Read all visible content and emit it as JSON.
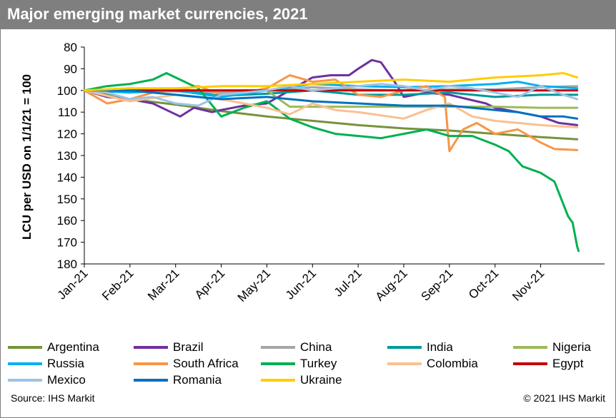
{
  "title": "Major emerging market currencies, 2021",
  "source": "Source: IHS Markit",
  "copyright": "© 2021 IHS Markit",
  "chart_data": {
    "type": "line",
    "title": "Major emerging market currencies, 2021",
    "ylabel": "LCU per USD on 1/1/21 = 100",
    "xlabel": "",
    "y_inverted": true,
    "ylim": [
      80,
      180
    ],
    "yticks": [
      80,
      90,
      100,
      110,
      120,
      130,
      140,
      150,
      160,
      170,
      180
    ],
    "xlim": [
      0,
      11.4
    ],
    "categories": [
      "Jan-21",
      "Feb-21",
      "Mar-21",
      "Apr-21",
      "May-21",
      "Jun-21",
      "Jul-21",
      "Aug-21",
      "Sep-21",
      "Oct-21",
      "Nov-21"
    ],
    "grid": false,
    "legend_position": "bottom",
    "series": [
      {
        "name": "Argentina",
        "color": "#76933c",
        "x": [
          0,
          1,
          2,
          3,
          4,
          5,
          6,
          7,
          8,
          9,
          10,
          10.8
        ],
        "values": [
          100,
          104,
          106.5,
          109.5,
          112,
          114,
          116,
          117.5,
          118.5,
          120,
          121.5,
          122.5
        ]
      },
      {
        "name": "Brazil",
        "color": "#7030a0",
        "x": [
          0,
          0.5,
          1,
          1.5,
          1.9,
          2.1,
          2.4,
          2.8,
          3,
          3.5,
          4,
          4.5,
          5,
          5.4,
          5.8,
          6,
          6.3,
          6.5,
          6.8,
          7,
          7.5,
          8,
          8.4,
          8.8,
          9,
          9.5,
          10,
          10.4,
          10.8
        ],
        "values": [
          100,
          103,
          104,
          106,
          110,
          112,
          108,
          110,
          109,
          107,
          106,
          100,
          94,
          93,
          93,
          90,
          86,
          87,
          96,
          103,
          101,
          102,
          104,
          106,
          108,
          110,
          112,
          115,
          116
        ]
      },
      {
        "name": "China",
        "color": "#a6a6a6",
        "x": [
          0,
          1,
          2,
          3,
          4,
          5,
          6,
          7,
          8,
          9,
          10,
          10.8
        ],
        "values": [
          100,
          100,
          100.5,
          101,
          100,
          98.5,
          99.5,
          100,
          99.5,
          99.5,
          98.5,
          98
        ]
      },
      {
        "name": "India",
        "color": "#009999",
        "x": [
          0,
          1,
          2,
          3,
          4,
          5,
          6,
          7,
          8,
          9,
          10,
          10.8
        ],
        "values": [
          100,
          100,
          100,
          102.5,
          101.5,
          100,
          102,
          102,
          101,
          103,
          102,
          102
        ]
      },
      {
        "name": "Nigeria",
        "color": "#9bbb59",
        "x": [
          0,
          1,
          2,
          3,
          4,
          4.5,
          5,
          6,
          7,
          8,
          9,
          10,
          10.8
        ],
        "values": [
          100,
          100,
          100,
          100,
          100,
          107.5,
          107.5,
          107.5,
          107.5,
          107.5,
          107.5,
          108,
          108
        ]
      },
      {
        "name": "Russia",
        "color": "#00b0f0",
        "x": [
          0,
          1,
          2,
          3,
          4,
          5,
          6,
          7,
          8,
          9,
          9.5,
          10,
          10.8
        ],
        "values": [
          100,
          101,
          100,
          103,
          100,
          97,
          98,
          98.5,
          98,
          97,
          96,
          98,
          99
        ]
      },
      {
        "name": "South Africa",
        "color": "#f79646",
        "x": [
          0,
          0.5,
          1,
          1.5,
          2,
          2.5,
          3,
          3.5,
          4,
          4.5,
          5,
          5.5,
          6,
          6.5,
          7,
          7.5,
          7.9,
          8,
          8.3,
          8.6,
          9,
          9.5,
          10,
          10.3,
          10.8
        ],
        "values": [
          100,
          106,
          104,
          101,
          100,
          98,
          102,
          101,
          99,
          93,
          96,
          95,
          102,
          103,
          100,
          98,
          103,
          128,
          118,
          115,
          120,
          118,
          124,
          127,
          127.5
        ]
      },
      {
        "name": "Turkey",
        "color": "#00b050",
        "x": [
          0,
          0.5,
          1,
          1.5,
          1.8,
          2,
          2.5,
          3,
          3.5,
          4,
          4.5,
          5,
          5.5,
          6,
          6.5,
          7,
          7.5,
          8,
          8.5,
          9,
          9.3,
          9.6,
          10,
          10.3,
          10.6,
          10.7,
          10.8,
          10.83
        ],
        "values": [
          100,
          98,
          97,
          95,
          92,
          94,
          99,
          112,
          108,
          105,
          113,
          117,
          120,
          121,
          122,
          120,
          118,
          121,
          121,
          125,
          128,
          135,
          138,
          142,
          158,
          161,
          172,
          174
        ]
      },
      {
        "name": "Colombia",
        "color": "#fac090",
        "x": [
          0,
          1,
          2,
          3,
          4,
          4.5,
          5,
          5.5,
          6,
          7,
          7.5,
          8,
          8.5,
          9,
          10,
          10.8
        ],
        "values": [
          100,
          105,
          102,
          104,
          108,
          111,
          106,
          109,
          110,
          113,
          109,
          106,
          112,
          114,
          116,
          117
        ]
      },
      {
        "name": "Egypt",
        "color": "#c00000",
        "x": [
          0,
          1,
          2,
          3,
          4,
          5,
          6,
          7,
          8,
          9,
          10,
          10.8
        ],
        "values": [
          100,
          100,
          100,
          100,
          100,
          100,
          100,
          100,
          100,
          100,
          100,
          100
        ]
      },
      {
        "name": "Mexico",
        "color": "#9dc3e6",
        "x": [
          0,
          0.5,
          1,
          1.5,
          2,
          2.5,
          3,
          3.5,
          4,
          4.5,
          5,
          5.5,
          6,
          6.5,
          7,
          7.5,
          8,
          8.5,
          9,
          9.5,
          10,
          10.5,
          10.8
        ],
        "values": [
          100,
          101,
          104,
          103,
          106,
          107,
          102,
          101,
          100,
          98,
          100,
          99,
          98,
          97,
          98,
          100,
          98,
          99,
          101,
          103,
          98,
          102,
          104
        ]
      },
      {
        "name": "Romania",
        "color": "#0070c0",
        "x": [
          0,
          1,
          2,
          3,
          4,
          5,
          6,
          7,
          8,
          8.5,
          9,
          9.5,
          10,
          10.5,
          10.8
        ],
        "values": [
          100,
          100,
          102,
          104,
          103,
          105,
          106,
          107,
          107,
          108,
          109,
          110,
          112,
          112,
          113
        ]
      },
      {
        "name": "Ukraine",
        "color": "#ffcc00",
        "x": [
          0,
          1,
          2,
          3,
          4,
          5,
          6,
          7,
          8,
          9,
          10,
          10.5,
          10.8
        ],
        "values": [
          100,
          99,
          99,
          98,
          98,
          97,
          96,
          95,
          96,
          94,
          93,
          92,
          94
        ]
      }
    ]
  }
}
